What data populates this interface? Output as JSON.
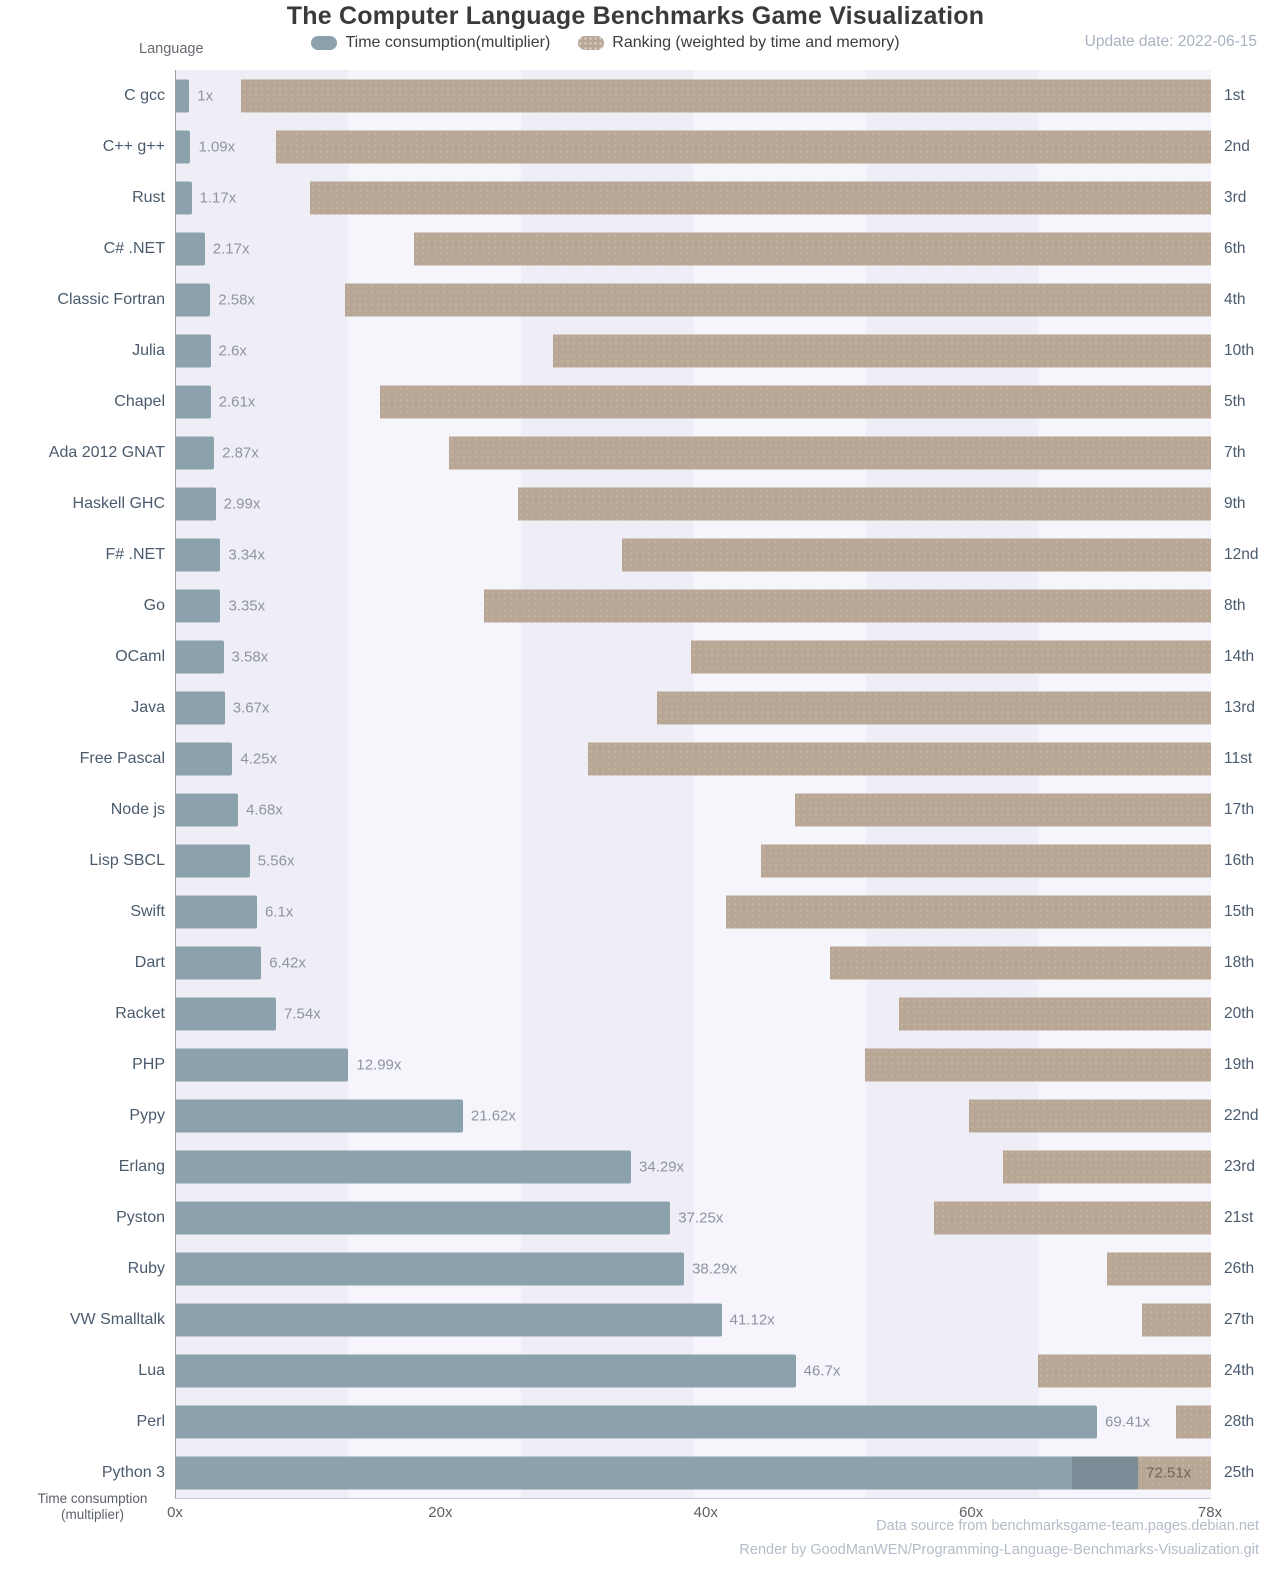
{
  "chart_data": {
    "type": "bar",
    "orientation": "horizontal",
    "title": "The Computer Language Benchmarks Game Visualization",
    "update_date": "Update date: 2022-06-15",
    "ylabel": "Language",
    "xlabel_line1": "Time consumption",
    "xlabel_line2": "(multiplier)",
    "legend": {
      "time": "Time consumption(multiplier)",
      "rank": "Ranking (weighted by time and memory)"
    },
    "xlim": [
      0,
      78
    ],
    "x_ticks": [
      {
        "value": 0,
        "label": "0x"
      },
      {
        "value": 20,
        "label": "20x"
      },
      {
        "value": 40,
        "label": "40x"
      },
      {
        "value": 60,
        "label": "60x"
      },
      {
        "value": 78,
        "label": "78x"
      }
    ],
    "rank_total": 28,
    "colors": {
      "time_bar": "#8ba2ac",
      "rank_bar": "#b9a795",
      "overlap_bar": "#7b8e97",
      "plot_stripe_dark": "#efeef6",
      "plot_stripe_light": "#f6f5fb"
    },
    "series": [
      {
        "language": "C gcc",
        "multiplier": 1,
        "multiplier_label": "1x",
        "rank": 1,
        "rank_label": "1st"
      },
      {
        "language": "C++ g++",
        "multiplier": 1.09,
        "multiplier_label": "1.09x",
        "rank": 2,
        "rank_label": "2nd"
      },
      {
        "language": "Rust",
        "multiplier": 1.17,
        "multiplier_label": "1.17x",
        "rank": 3,
        "rank_label": "3rd"
      },
      {
        "language": "C# .NET",
        "multiplier": 2.17,
        "multiplier_label": "2.17x",
        "rank": 6,
        "rank_label": "6th"
      },
      {
        "language": "Classic Fortran",
        "multiplier": 2.58,
        "multiplier_label": "2.58x",
        "rank": 4,
        "rank_label": "4th"
      },
      {
        "language": "Julia",
        "multiplier": 2.6,
        "multiplier_label": "2.6x",
        "rank": 10,
        "rank_label": "10th"
      },
      {
        "language": "Chapel",
        "multiplier": 2.61,
        "multiplier_label": "2.61x",
        "rank": 5,
        "rank_label": "5th"
      },
      {
        "language": "Ada 2012 GNAT",
        "multiplier": 2.87,
        "multiplier_label": "2.87x",
        "rank": 7,
        "rank_label": "7th"
      },
      {
        "language": "Haskell GHC",
        "multiplier": 2.99,
        "multiplier_label": "2.99x",
        "rank": 9,
        "rank_label": "9th"
      },
      {
        "language": "F# .NET",
        "multiplier": 3.34,
        "multiplier_label": "3.34x",
        "rank": 12,
        "rank_label": "12nd"
      },
      {
        "language": "Go",
        "multiplier": 3.35,
        "multiplier_label": "3.35x",
        "rank": 8,
        "rank_label": "8th"
      },
      {
        "language": "OCaml",
        "multiplier": 3.58,
        "multiplier_label": "3.58x",
        "rank": 14,
        "rank_label": "14th"
      },
      {
        "language": "Java",
        "multiplier": 3.67,
        "multiplier_label": "3.67x",
        "rank": 13,
        "rank_label": "13rd"
      },
      {
        "language": "Free Pascal",
        "multiplier": 4.25,
        "multiplier_label": "4.25x",
        "rank": 11,
        "rank_label": "11st"
      },
      {
        "language": "Node js",
        "multiplier": 4.68,
        "multiplier_label": "4.68x",
        "rank": 17,
        "rank_label": "17th"
      },
      {
        "language": "Lisp SBCL",
        "multiplier": 5.56,
        "multiplier_label": "5.56x",
        "rank": 16,
        "rank_label": "16th"
      },
      {
        "language": "Swift",
        "multiplier": 6.1,
        "multiplier_label": "6.1x",
        "rank": 15,
        "rank_label": "15th"
      },
      {
        "language": "Dart",
        "multiplier": 6.42,
        "multiplier_label": "6.42x",
        "rank": 18,
        "rank_label": "18th"
      },
      {
        "language": "Racket",
        "multiplier": 7.54,
        "multiplier_label": "7.54x",
        "rank": 20,
        "rank_label": "20th"
      },
      {
        "language": "PHP",
        "multiplier": 12.99,
        "multiplier_label": "12.99x",
        "rank": 19,
        "rank_label": "19th"
      },
      {
        "language": "Pypy",
        "multiplier": 21.62,
        "multiplier_label": "21.62x",
        "rank": 22,
        "rank_label": "22nd"
      },
      {
        "language": "Erlang",
        "multiplier": 34.29,
        "multiplier_label": "34.29x",
        "rank": 23,
        "rank_label": "23rd"
      },
      {
        "language": "Pyston",
        "multiplier": 37.25,
        "multiplier_label": "37.25x",
        "rank": 21,
        "rank_label": "21st"
      },
      {
        "language": "Ruby",
        "multiplier": 38.29,
        "multiplier_label": "38.29x",
        "rank": 26,
        "rank_label": "26th"
      },
      {
        "language": "VW Smalltalk",
        "multiplier": 41.12,
        "multiplier_label": "41.12x",
        "rank": 27,
        "rank_label": "27th"
      },
      {
        "language": "Lua",
        "multiplier": 46.7,
        "multiplier_label": "46.7x",
        "rank": 24,
        "rank_label": "24th"
      },
      {
        "language": "Perl",
        "multiplier": 69.41,
        "multiplier_label": "69.41x",
        "rank": 28,
        "rank_label": "28th"
      },
      {
        "language": "Python 3",
        "multiplier": 72.51,
        "multiplier_label": "72.51x",
        "rank": 25,
        "rank_label": "25th"
      }
    ],
    "footer": {
      "line1": "Data source from benchmarksgame-team.pages.debian.net",
      "line2": "Render by GoodManWEN/Programming-Language-Benchmarks-Visualization.git"
    }
  }
}
